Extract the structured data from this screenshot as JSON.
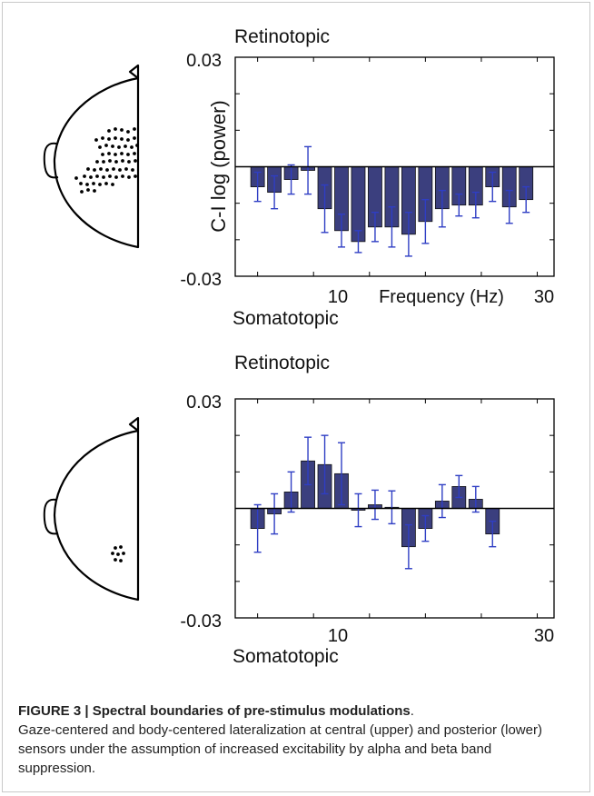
{
  "figure": {
    "caption_title": "FIGURE 3 | Spectral boundaries of pre-stimulus modulations",
    "caption_title_end": ".",
    "caption_text": "Gaze-centered and body-centered lateralization at central (upper) and posterior (lower) sensors under the assumption of increased excitability by alpha and beta band suppression."
  },
  "colors": {
    "bar_fill": "#3b3f7e",
    "error_bar": "#2f3ec4",
    "axis": "#000000"
  },
  "chart_data": [
    {
      "type": "bar",
      "panel": "upper",
      "top_label": "Retinotopic",
      "bottom_label": "Somatotopic",
      "ylabel": "C-I log (power)",
      "xlabel": "Frequency (Hz)",
      "ylim": [
        -0.03,
        0.03
      ],
      "ytick_labels": [
        "0.03",
        "-0.03"
      ],
      "xticks": [
        10,
        30
      ],
      "xlim": [
        3,
        31.5
      ],
      "x": [
        5,
        6.5,
        8,
        9.5,
        11,
        12.5,
        14,
        15.5,
        17,
        18.5,
        20,
        21.5,
        23,
        24.5,
        26,
        27.5,
        29
      ],
      "values": [
        -0.0055,
        -0.007,
        -0.0035,
        -0.001,
        -0.0115,
        -0.0175,
        -0.0205,
        -0.0165,
        -0.0165,
        -0.0185,
        -0.015,
        -0.0115,
        -0.0105,
        -0.0105,
        -0.0055,
        -0.011,
        -0.009
      ],
      "errors": [
        0.004,
        0.0045,
        0.004,
        0.0065,
        0.0065,
        0.0045,
        0.003,
        0.004,
        0.0055,
        0.006,
        0.006,
        0.005,
        0.003,
        0.0035,
        0.004,
        0.0045,
        0.0035
      ]
    },
    {
      "type": "bar",
      "panel": "lower",
      "top_label": "Retinotopic",
      "bottom_label": "Somatotopic",
      "ylabel": "",
      "xlabel": "",
      "ylim": [
        -0.03,
        0.03
      ],
      "ytick_labels": [
        "0.03",
        "-0.03"
      ],
      "xticks": [
        10,
        30
      ],
      "xlim": [
        3,
        31.5
      ],
      "x": [
        5,
        6.5,
        8,
        9.5,
        11,
        12.5,
        14,
        15.5,
        17,
        18.5,
        20,
        21.5,
        23,
        24.5,
        26,
        27.5,
        29
      ],
      "values": [
        -0.0055,
        -0.0015,
        0.0045,
        0.013,
        0.012,
        0.0095,
        -0.0005,
        0.001,
        0.0003,
        -0.0105,
        -0.0055,
        0.002,
        0.006,
        0.0025,
        -0.007,
        0,
        0
      ],
      "errors": [
        0.0065,
        0.0055,
        0.0055,
        0.0065,
        0.008,
        0.0085,
        0.0045,
        0.004,
        0.0045,
        0.006,
        0.0035,
        0.0045,
        0.003,
        0.0035,
        0.0035,
        0,
        0
      ]
    }
  ]
}
